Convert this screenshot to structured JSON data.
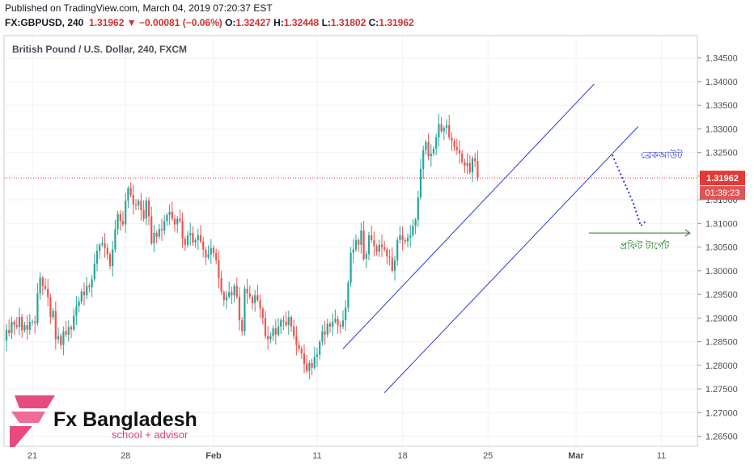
{
  "header": {
    "published": "Published on TradingView.com, March 04, 2019 07:20:37 EST",
    "symbol": "FX:GBPUSD, 240",
    "last": "1.31962",
    "change": "−0.00081 (−0.06%)",
    "o_label": "O:",
    "o_value": "1.32427",
    "h_label": "H:",
    "h_value": "1.32448",
    "l_label": "L:",
    "l_value": "1.31802",
    "c_label": "C:",
    "c_value": "1.31962"
  },
  "legend_title": "British Pound / U.S. Dollar, 240, FXCM",
  "logo": {
    "name": "Fx Bangladesh",
    "tagline": "school + advisor"
  },
  "colors": {
    "up": "#26a69a",
    "down": "#ef5350",
    "channel": "#2b3bd6",
    "projection": "#2b3bd6",
    "target": "#1a7a1a",
    "price_line": "#e53935"
  },
  "chart_data": {
    "type": "candlestick",
    "title": "British Pound / U.S. Dollar, 240, FXCM",
    "ylim": [
      1.2615,
      1.347
    ],
    "y_ticks": [
      1.265,
      1.27,
      1.275,
      1.28,
      1.285,
      1.29,
      1.295,
      1.3,
      1.305,
      1.31,
      1.315,
      1.32,
      1.325,
      1.33,
      1.335,
      1.34,
      1.345
    ],
    "y_tick_labels": [
      "1.26500",
      "1.27000",
      "1.27500",
      "1.28000",
      "1.28500",
      "1.29000",
      "1.29500",
      "1.30000",
      "1.30500",
      "1.31000",
      "1.31500",
      "1.32000",
      "1.32500",
      "1.33000",
      "1.33500",
      "1.34000",
      "1.34500"
    ],
    "x_ticks": [
      "21",
      "28",
      "Feb",
      "11",
      "18",
      "25",
      "Mar",
      "11"
    ],
    "x_tick_index": [
      10,
      46,
      80,
      120,
      153,
      186,
      220,
      253
    ],
    "current_price": {
      "value": 1.31962,
      "label": "1.31962",
      "countdown": "01:39:23"
    },
    "closes": [
      1.2875,
      1.2868,
      1.2892,
      1.2885,
      1.2881,
      1.2902,
      1.2874,
      1.2885,
      1.2875,
      1.2892,
      1.2893,
      1.2889,
      1.2952,
      1.2985,
      1.2968,
      1.2962,
      1.2944,
      1.2902,
      1.2915,
      1.2855,
      1.2862,
      1.2843,
      1.2872,
      1.2865,
      1.2881,
      1.2876,
      1.2905,
      1.2925,
      1.2935,
      1.2956,
      1.2948,
      1.2968,
      1.2965,
      1.2982,
      1.3015,
      1.3042,
      1.3055,
      1.3058,
      1.3048,
      1.3035,
      1.301,
      1.3045,
      1.3088,
      1.312,
      1.3105,
      1.3098,
      1.3148,
      1.3175,
      1.316,
      1.314,
      1.3138,
      1.3148,
      1.3128,
      1.311,
      1.3148,
      1.3115,
      1.3058,
      1.308,
      1.3072,
      1.3088,
      1.3085,
      1.3105,
      1.3118,
      1.3125,
      1.311,
      1.3098,
      1.311,
      1.3105,
      1.3068,
      1.3055,
      1.3075,
      1.308,
      1.306,
      1.3065,
      1.3075,
      1.3062,
      1.3045,
      1.3028,
      1.3035,
      1.3048,
      1.3038,
      1.3022,
      1.2985,
      1.2955,
      1.2938,
      1.2945,
      1.2955,
      1.2948,
      1.2968,
      1.2945,
      1.2895,
      1.2872,
      1.2962,
      1.2952,
      1.2945,
      1.2932,
      1.2948,
      1.2938,
      1.292,
      1.29,
      1.2862,
      1.2855,
      1.2862,
      1.2878,
      1.2865,
      1.2882,
      1.2895,
      1.2892,
      1.2885,
      1.2902,
      1.2882,
      1.2862,
      1.2843,
      1.2835,
      1.2825,
      1.2803,
      1.2788,
      1.2805,
      1.2795,
      1.2818,
      1.2823,
      1.285,
      1.2872,
      1.2865,
      1.2888,
      1.2882,
      1.2892,
      1.2898,
      1.2885,
      1.2882,
      1.2895,
      1.2922,
      1.2975,
      1.3038,
      1.3045,
      1.3065,
      1.3055,
      1.3085,
      1.3025,
      1.3035,
      1.3075,
      1.3065,
      1.3052,
      1.304,
      1.3055,
      1.305,
      1.3045,
      1.303,
      1.3028,
      1.3,
      1.3022,
      1.3065,
      1.3075,
      1.3065,
      1.3062,
      1.307,
      1.3075,
      1.3095,
      1.3108,
      1.3155,
      1.3215,
      1.3255,
      1.3272,
      1.3242,
      1.3248,
      1.3258,
      1.3282,
      1.331,
      1.3295,
      1.3302,
      1.3308,
      1.3282,
      1.3275,
      1.3262,
      1.3255,
      1.3248,
      1.323,
      1.3222,
      1.3228,
      1.3208,
      1.3238,
      1.3232,
      1.3196
    ],
    "projection_label": "ব্রেকআউট",
    "target_label": "প্রফিট টার্গেট",
    "target_price": 1.308
  }
}
